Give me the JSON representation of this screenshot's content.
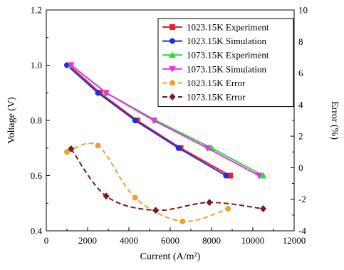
{
  "chart_data": {
    "type": "line",
    "title": "",
    "xlabel": "Current (A/m²)",
    "ylabel": "Voltage (V)",
    "y2label": "Error (%)",
    "xlim": [
      0,
      12000
    ],
    "ylim": [
      0.4,
      1.2
    ],
    "y2lim": [
      -4,
      10
    ],
    "xticks": [
      "0",
      "2000",
      "4000",
      "6000",
      "8000",
      "10000",
      "12000"
    ],
    "yticks": [
      "0.4",
      "0.6",
      "0.8",
      "1.0",
      "1.2"
    ],
    "y2ticks": [
      "-4",
      "-2",
      "0",
      "2",
      "4",
      "6",
      "8",
      "10"
    ],
    "grid": false,
    "legend_position": "top-right",
    "series": [
      {
        "name": "1023.15K Experiment",
        "axis": "left",
        "color": "#e8202a",
        "marker": "square",
        "dash": false,
        "smooth": false,
        "x": [
          1100,
          2600,
          4400,
          6500,
          8900
        ],
        "y": [
          1.0,
          0.9,
          0.8,
          0.7,
          0.6
        ]
      },
      {
        "name": "1023.15K Simulation",
        "axis": "left",
        "color": "#1d2ee0",
        "marker": "circle",
        "dash": false,
        "smooth": false,
        "x": [
          1000,
          2500,
          4300,
          6400,
          8700
        ],
        "y": [
          1.0,
          0.9,
          0.8,
          0.7,
          0.6
        ]
      },
      {
        "name": "1073.15K Experiment",
        "axis": "left",
        "color": "#2edb3a",
        "marker": "triangle-up",
        "dash": false,
        "smooth": false,
        "x": [
          1200,
          2900,
          5300,
          8000,
          10500
        ],
        "y": [
          1.0,
          0.9,
          0.8,
          0.7,
          0.6
        ]
      },
      {
        "name": "1073.15K Simulation",
        "axis": "left",
        "color": "#e632e6",
        "marker": "triangle-down",
        "dash": false,
        "smooth": false,
        "x": [
          1200,
          2900,
          5200,
          7800,
          10300
        ],
        "y": [
          1.0,
          0.9,
          0.8,
          0.7,
          0.6
        ]
      },
      {
        "name": "1023.15K Error",
        "axis": "right",
        "color": "#f0a030",
        "marker": "circle",
        "dash": true,
        "smooth": true,
        "x": [
          1000,
          2500,
          4300,
          6600,
          8800
        ],
        "y": [
          1.0,
          1.4,
          -1.9,
          -3.4,
          -2.6
        ]
      },
      {
        "name": "1073.15K Error",
        "axis": "right",
        "color": "#7a1a1a",
        "marker": "diamond",
        "dash": true,
        "smooth": true,
        "x": [
          1200,
          2900,
          5300,
          7900,
          10500
        ],
        "y": [
          1.2,
          -1.8,
          -2.7,
          -2.2,
          -2.6
        ]
      }
    ]
  }
}
